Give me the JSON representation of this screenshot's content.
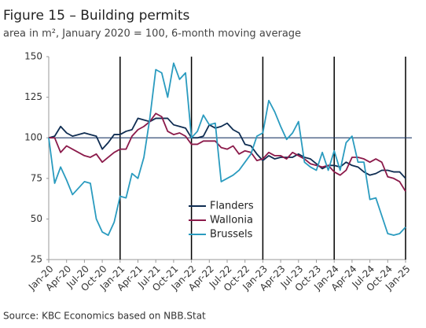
{
  "chart_data": {
    "type": "line",
    "title": "Figure 15 – Building permits",
    "subtitle": "area in m², January 2020 = 100, 6-month moving average",
    "source": "Source: KBC Economics based on NBB.Stat",
    "categories": [
      "Jan-20",
      null,
      null,
      "Apr-20",
      null,
      null,
      "Jul-20",
      null,
      null,
      "Oct-20",
      null,
      null,
      "Jan-21",
      null,
      null,
      "Apr-21",
      null,
      null,
      "Jul-21",
      null,
      null,
      "Oct-21",
      null,
      null,
      "Jan-22",
      null,
      null,
      "Apr-22",
      null,
      null,
      "Jul-22",
      null,
      null,
      "Oct-22",
      null,
      null,
      "Jan-23",
      null,
      null,
      "Apr-23",
      null,
      null,
      "Jul-23",
      null,
      null,
      "Oct-23",
      null,
      null,
      "Jan-24",
      null,
      null,
      "Apr-24",
      null,
      null,
      "Jul-24",
      null,
      null,
      "Oct-24",
      null,
      null,
      "Jan-25"
    ],
    "series": [
      {
        "name": "Flanders",
        "color": "#0f2d52",
        "values": [
          100,
          101,
          107,
          103,
          101,
          102,
          103,
          102,
          101,
          93,
          97,
          102,
          102,
          104,
          105,
          112,
          111,
          110,
          112,
          112,
          112,
          108,
          107,
          106,
          100,
          100,
          101,
          108,
          106,
          107,
          109,
          105,
          103,
          96,
          95,
          90,
          86,
          89,
          87,
          88,
          88,
          88,
          90,
          88,
          87,
          84,
          81,
          83,
          83,
          82,
          85,
          83,
          82,
          79,
          77,
          78,
          80,
          80,
          79,
          79,
          75
        ]
      },
      {
        "name": "Wallonia",
        "color": "#8b1a4a",
        "values": [
          100,
          100,
          91,
          95,
          93,
          91,
          89,
          88,
          90,
          85,
          88,
          91,
          93,
          93,
          101,
          105,
          107,
          110,
          115,
          113,
          104,
          102,
          103,
          101,
          96,
          96,
          98,
          98,
          98,
          94,
          93,
          95,
          90,
          92,
          91,
          86,
          87,
          91,
          89,
          89,
          87,
          91,
          89,
          87,
          84,
          83,
          82,
          83,
          79,
          77,
          80,
          88,
          88,
          87,
          85,
          87,
          85,
          76,
          75,
          73,
          67
        ]
      },
      {
        "name": "Brussels",
        "color": "#2a9bbf",
        "values": [
          100,
          72,
          82,
          74,
          65,
          69,
          73,
          72,
          50,
          42,
          40,
          48,
          64,
          63,
          78,
          75,
          88,
          112,
          142,
          140,
          125,
          146,
          136,
          140,
          100,
          104,
          114,
          108,
          109,
          73,
          75,
          77,
          80,
          85,
          90,
          101,
          103,
          123,
          116,
          107,
          99,
          103,
          110,
          85,
          82,
          80,
          91,
          80,
          92,
          80,
          97,
          101,
          85,
          85,
          62,
          63,
          52,
          41,
          40,
          41,
          45
        ]
      }
    ],
    "ylim": [
      25,
      150
    ],
    "yticks": [
      25,
      50,
      75,
      100,
      125,
      150
    ],
    "reference_line": 100,
    "legend": "center"
  }
}
